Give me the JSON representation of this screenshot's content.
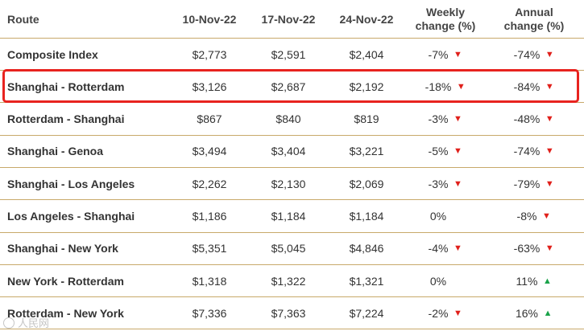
{
  "header": {
    "route": "Route",
    "d1": "10-Nov-22",
    "d2": "17-Nov-22",
    "d3": "24-Nov-22",
    "weekly_l1": "Weekly",
    "weekly_l2": "change (%)",
    "annual_l1": "Annual",
    "annual_l2": "change (%)"
  },
  "rows": [
    {
      "route": "Composite Index",
      "v1": "$2,773",
      "v2": "$2,591",
      "v3": "$2,404",
      "weekly": "-7%",
      "weekly_dir": "down",
      "annual": "-74%",
      "annual_dir": "down"
    },
    {
      "route": "Shanghai - Rotterdam",
      "v1": "$3,126",
      "v2": "$2,687",
      "v3": "$2,192",
      "weekly": "-18%",
      "weekly_dir": "down",
      "annual": "-84%",
      "annual_dir": "down"
    },
    {
      "route": "Rotterdam - Shanghai",
      "v1": "$867",
      "v2": "$840",
      "v3": "$819",
      "weekly": "-3%",
      "weekly_dir": "down",
      "annual": "-48%",
      "annual_dir": "down"
    },
    {
      "route": "Shanghai - Genoa",
      "v1": "$3,494",
      "v2": "$3,404",
      "v3": "$3,221",
      "weekly": "-5%",
      "weekly_dir": "down",
      "annual": "-74%",
      "annual_dir": "down"
    },
    {
      "route": "Shanghai - Los Angeles",
      "v1": "$2,262",
      "v2": "$2,130",
      "v3": "$2,069",
      "weekly": "-3%",
      "weekly_dir": "down",
      "annual": "-79%",
      "annual_dir": "down"
    },
    {
      "route": "Los Angeles - Shanghai",
      "v1": "$1,186",
      "v2": "$1,184",
      "v3": "$1,184",
      "weekly": "0%",
      "weekly_dir": "none",
      "annual": "-8%",
      "annual_dir": "down"
    },
    {
      "route": "Shanghai - New York",
      "v1": "$5,351",
      "v2": "$5,045",
      "v3": "$4,846",
      "weekly": "-4%",
      "weekly_dir": "down",
      "annual": "-63%",
      "annual_dir": "down"
    },
    {
      "route": "New York - Rotterdam",
      "v1": "$1,318",
      "v2": "$1,322",
      "v3": "$1,321",
      "weekly": "0%",
      "weekly_dir": "none",
      "annual": "11%",
      "annual_dir": "up"
    },
    {
      "route": "Rotterdam - New York",
      "v1": "$7,336",
      "v2": "$7,363",
      "v3": "$7,224",
      "weekly": "-2%",
      "weekly_dir": "down",
      "annual": "16%",
      "annual_dir": "up"
    }
  ],
  "highlighted_route": "Shanghai - Rotterdam",
  "colors": {
    "down": "#e0201b",
    "up": "#1aa34a",
    "rule": "#c8a96a",
    "highlight": "#e8231f"
  },
  "watermark": "人民网"
}
